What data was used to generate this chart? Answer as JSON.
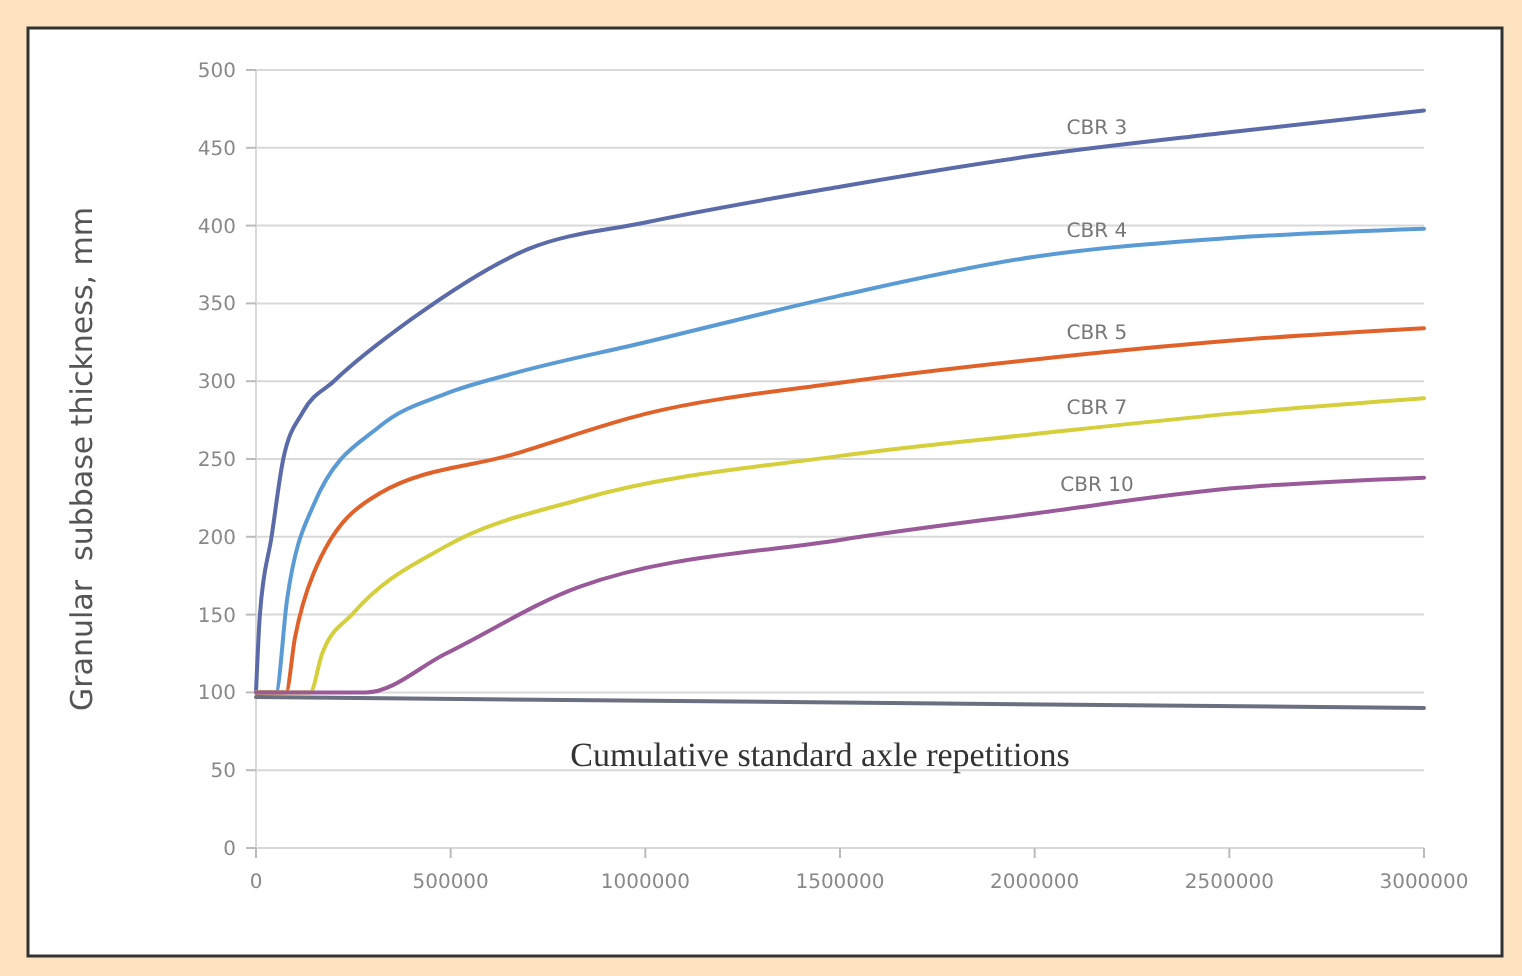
{
  "chart_data": {
    "type": "line",
    "xlabel": "Cumulative standard axle repetitions",
    "ylabel": "Granular  subbase thickness, mm",
    "xlim": [
      0,
      3000000
    ],
    "xticks": [
      0,
      500000,
      1000000,
      1500000,
      2000000,
      2500000,
      3000000
    ],
    "ylim": [
      0,
      500
    ],
    "yticks": [
      0,
      50,
      100,
      150,
      200,
      250,
      300,
      350,
      400,
      450,
      500
    ],
    "grid": "y",
    "marker": "none",
    "line_style": "solid",
    "series": [
      {
        "name": "CBR 3",
        "color": "#5b6aa8",
        "x": [
          0,
          10000,
          40000,
          70000,
          120000,
          200000,
          400000,
          700000,
          1000000,
          1500000,
          2000000,
          2500000,
          3000000
        ],
        "values": [
          100,
          150,
          200,
          250,
          280,
          300,
          340,
          385,
          402,
          425,
          445,
          460,
          474
        ]
      },
      {
        "name": "CBR 4",
        "color": "#5b9bd5",
        "x": [
          0,
          51000,
          80000,
          147000,
          318000,
          488000,
          661000,
          1000000,
          1500000,
          2000000,
          2500000,
          3000000
        ],
        "values": [
          100,
          100,
          160,
          220,
          271,
          292,
          305,
          325,
          355,
          380,
          392,
          398
        ]
      },
      {
        "name": "CBR 5",
        "color": "#e0622a",
        "x": [
          0,
          77000,
          100000,
          147000,
          318000,
          661000,
          1000000,
          1500000,
          2000000,
          2500000,
          3000000
        ],
        "values": [
          100,
          100,
          135,
          176,
          228,
          253,
          279,
          299,
          314,
          326,
          334
        ]
      },
      {
        "name": "CBR 7",
        "color": "#d4cf3a",
        "x": [
          0,
          139000,
          170000,
          250000,
          488000,
          832000,
          1500000,
          2000000,
          2500000,
          3000000
        ],
        "values": [
          100,
          100,
          125,
          151,
          194,
          224,
          252,
          266,
          279,
          289
        ]
      },
      {
        "name": "CBR 10",
        "color": "#9a5a9a",
        "x": [
          0,
          283000,
          488000,
          832000,
          1500000,
          2000000,
          2500000,
          3000000
        ],
        "values": [
          100,
          100,
          125,
          168,
          198,
          215,
          231,
          238
        ]
      },
      {
        "color": "#6a7080",
        "x": [
          0,
          3000000
        ],
        "values": [
          97,
          90
        ]
      }
    ]
  }
}
